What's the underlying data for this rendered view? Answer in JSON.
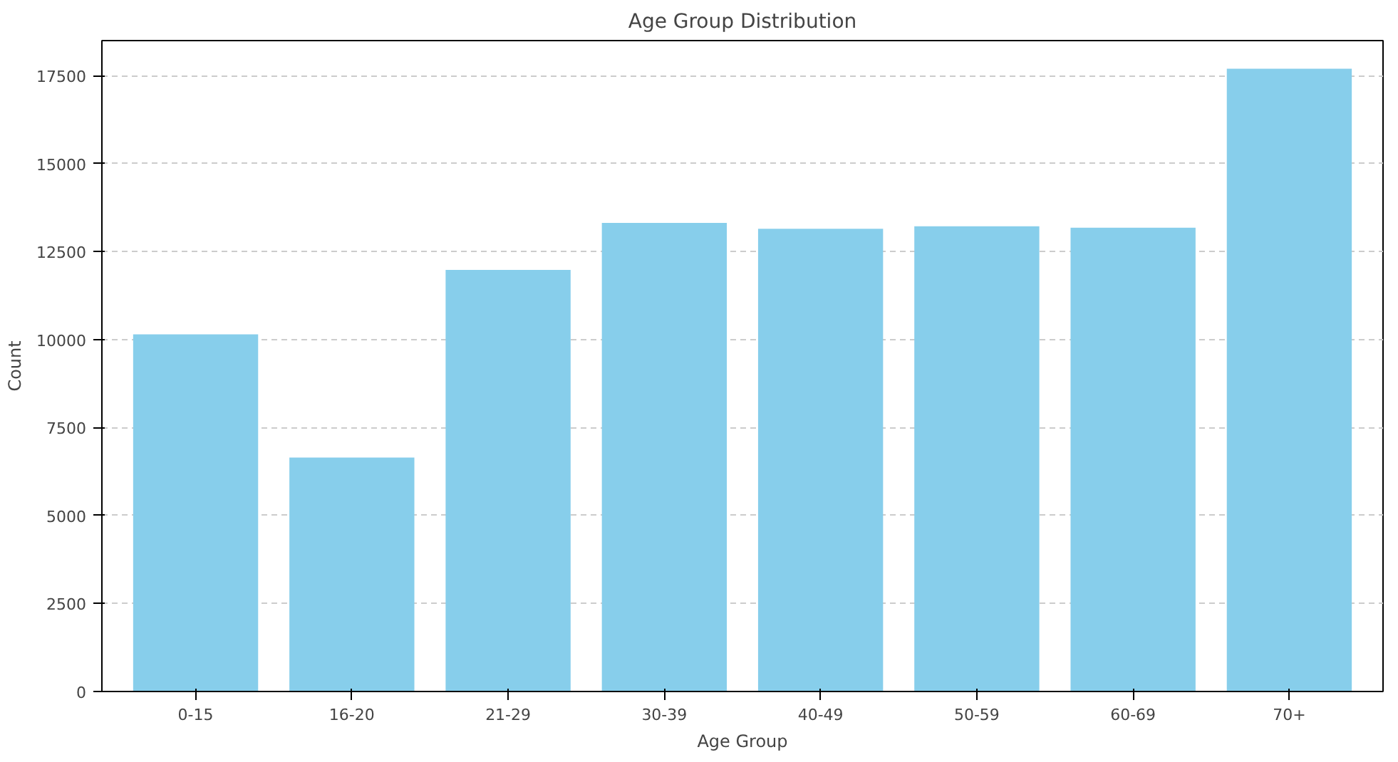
{
  "chart_data": {
    "type": "bar",
    "title": "Age Group Distribution",
    "xlabel": "Age Group",
    "ylabel": "Count",
    "categories": [
      "0-15",
      "16-20",
      "21-29",
      "30-39",
      "40-49",
      "50-59",
      "60-69",
      "70+"
    ],
    "values": [
      10150,
      6650,
      11980,
      13320,
      13150,
      13220,
      13180,
      17700
    ],
    "color": "#87ceeb",
    "ylim": [
      0,
      18500
    ],
    "yticks": [
      0,
      2500,
      5000,
      7500,
      10000,
      12500,
      15000,
      17500
    ],
    "grid": "y",
    "line_style": "dashed"
  }
}
